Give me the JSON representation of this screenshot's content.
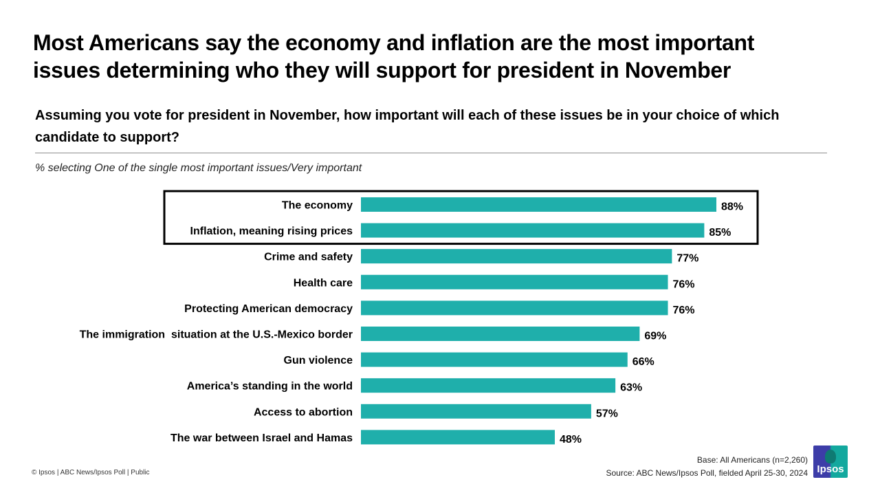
{
  "header": {
    "title_line1": "Most Americans say the economy and inflation are the most important",
    "title_line2": "issues determining who they will support for president in November",
    "question": "Assuming you vote for president in November, how important will each of these issues be in your choice of which candidate to support?",
    "subtitle": "% selecting One of the single most important issues/Very important"
  },
  "chart_data": {
    "type": "bar",
    "orientation": "horizontal",
    "title": "Most Americans say the economy and inflation are the most important issues determining who they will support for president in November",
    "xlabel": "",
    "ylabel": "",
    "xlim": [
      0,
      100
    ],
    "grid": false,
    "unit": "%",
    "bar_color": "#1fafab",
    "highlighted_categories": [
      "The economy",
      "Inflation, meaning rising prices"
    ],
    "categories": [
      "The economy",
      "Inflation, meaning rising prices",
      "Crime and safety",
      "Health care",
      "Protecting American democracy",
      "The immigration  situation at the U.S.-Mexico border",
      "Gun violence",
      "America’s standing in the world",
      "Access to abortion",
      "The war between Israel and Hamas"
    ],
    "values": [
      88,
      85,
      77,
      76,
      76,
      69,
      66,
      63,
      57,
      48
    ],
    "value_labels": [
      "88%",
      "85%",
      "77%",
      "76%",
      "76%",
      "69%",
      "66%",
      "63%",
      "57%",
      "48%"
    ]
  },
  "footer": {
    "copyright": "© Ipsos | ABC News/Ipsos Poll | Public",
    "base": "Base: All Americans (n=2,260)",
    "source": "Source: ABC News/Ipsos  Poll, fielded April 25-30, 2024",
    "logo_text": "Ipsos"
  }
}
